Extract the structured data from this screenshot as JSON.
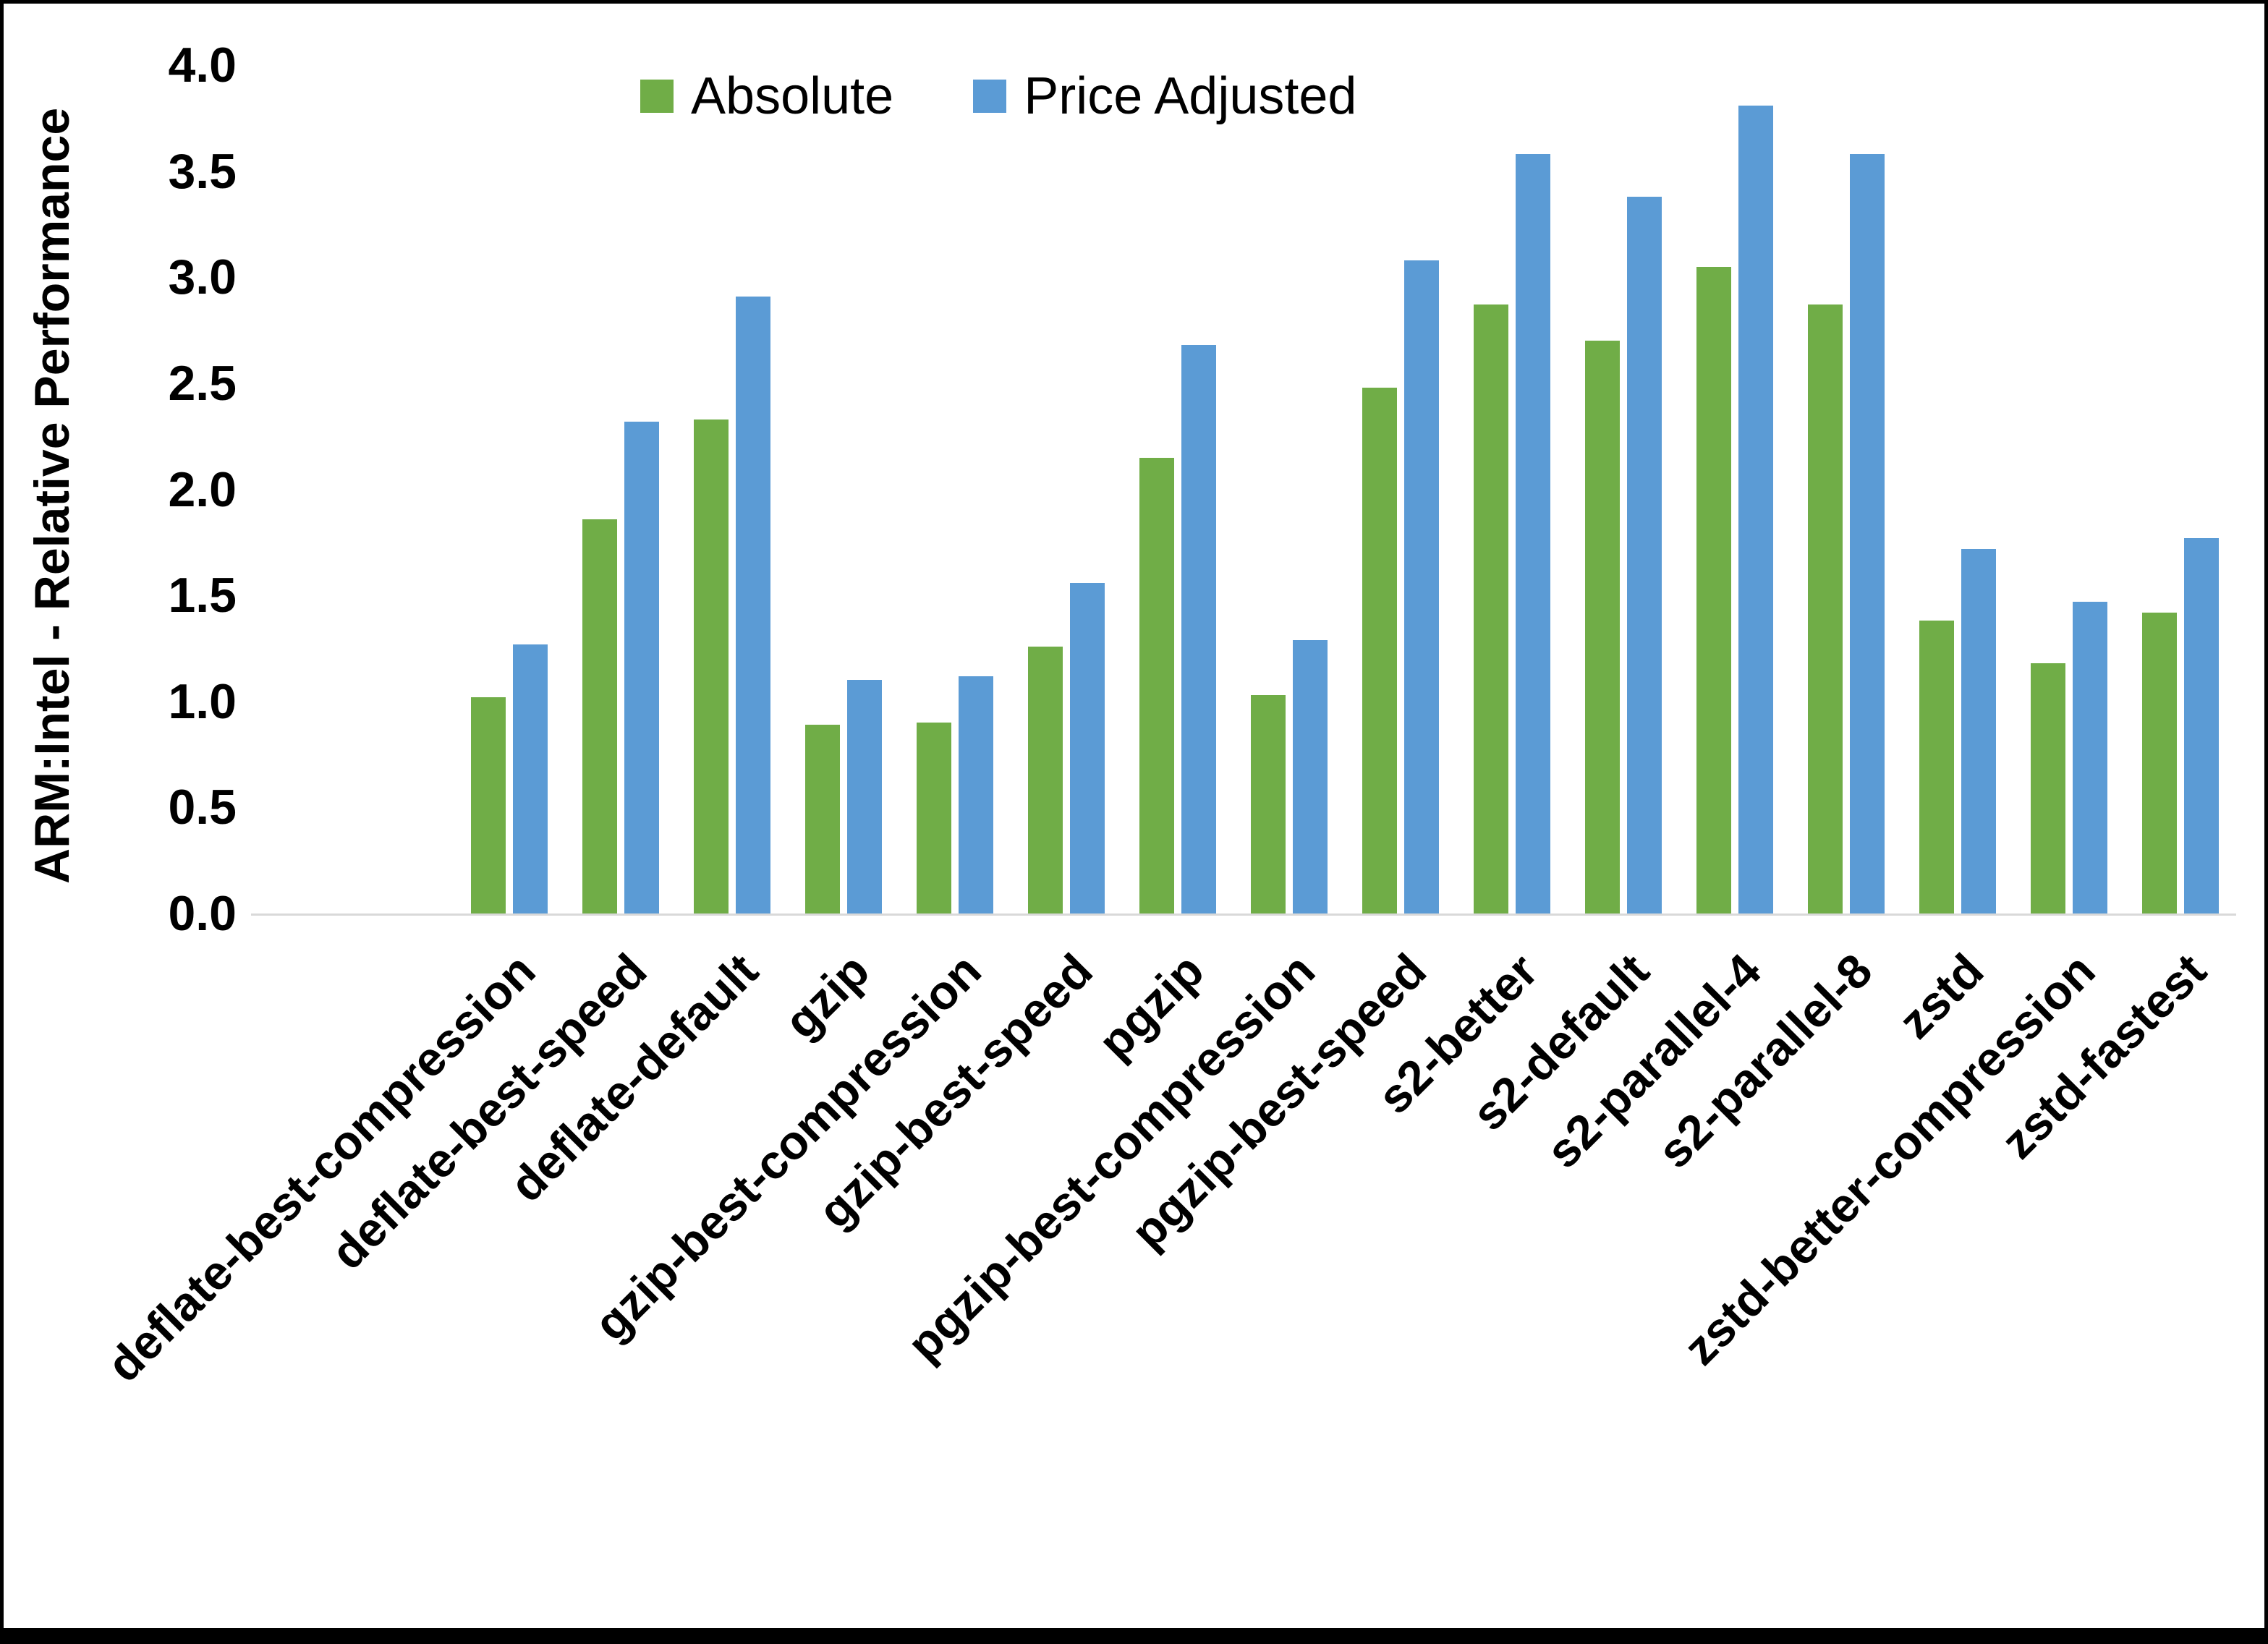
{
  "chart_data": {
    "type": "bar",
    "title": "",
    "xlabel": "",
    "ylabel": "ARM:Intel - Relative Performance",
    "ylim": [
      0,
      4.0
    ],
    "yticks": [
      "0.0",
      "0.5",
      "1.0",
      "1.5",
      "2.0",
      "2.5",
      "3.0",
      "3.5",
      "4.0"
    ],
    "grid": false,
    "legend_position": "top",
    "categories": [
      "deflate-best-compression",
      "deflate-best-speed",
      "deflate-default",
      "gzip",
      "gzip-best-compression",
      "gzip-best-speed",
      "pgzip",
      "pgzip-best-compression",
      "pgzip-best-speed",
      "s2-better",
      "s2-default",
      "s2-parallel-4",
      "s2-parallel-8",
      "zstd",
      "zstd-better-compression",
      "zstd-fastest"
    ],
    "series": [
      {
        "name": "Absolute",
        "color": "#70AD47",
        "values": [
          1.02,
          1.86,
          2.33,
          0.89,
          0.9,
          1.26,
          2.15,
          1.03,
          2.48,
          2.87,
          2.7,
          3.05,
          2.87,
          1.38,
          1.18,
          1.42
        ]
      },
      {
        "name": "Price Adjusted",
        "color": "#5B9BD5",
        "values": [
          1.27,
          2.32,
          2.91,
          1.1,
          1.12,
          1.56,
          2.68,
          1.29,
          3.08,
          3.58,
          3.38,
          3.81,
          3.58,
          1.72,
          1.47,
          1.77
        ]
      }
    ]
  }
}
